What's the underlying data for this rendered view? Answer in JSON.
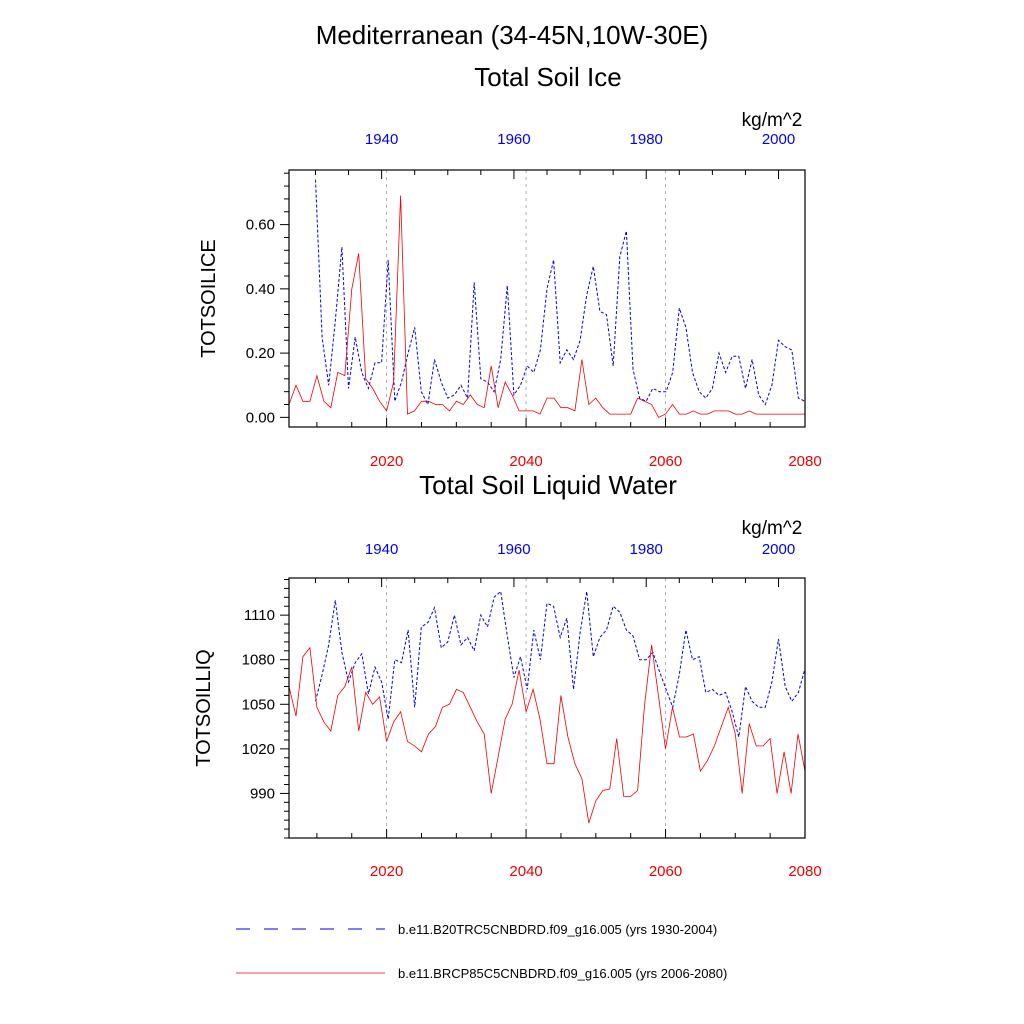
{
  "figure": {
    "title": "Mediterranean (34-45N,10W-30E)"
  },
  "colors": {
    "historical": "#0000ee",
    "future": "#ee0000",
    "grid": "#999999",
    "axis": "#000000"
  },
  "chart_data": [
    {
      "type": "line",
      "title": "Total Soil Ice",
      "ylabel": "TOTSOILICE",
      "units": "kg/m^2",
      "top_axis": {
        "range": [
          1926,
          2004
        ],
        "ticks": [
          1940,
          1960,
          1980,
          2000
        ],
        "labels": [
          "1940",
          "1960",
          "1980",
          "2000"
        ]
      },
      "bottom_axis": {
        "range": [
          2006,
          2080
        ],
        "ticks": [
          2020,
          2040,
          2060,
          2080
        ],
        "labels": [
          "2020",
          "2040",
          "2060",
          "2080"
        ]
      },
      "ylim": [
        -0.03,
        0.77
      ],
      "yticks": [
        0.0,
        0.2,
        0.4,
        0.6
      ],
      "ytick_labels": [
        "0.00",
        "0.20",
        "0.40",
        "0.60"
      ],
      "grid": "vertical dashed at bottom-axis ticks",
      "series": [
        {
          "name": "b.e11.B20TRC5CNBDRD.f09_g16.005 (yrs 1930-2004)",
          "axis": "top",
          "style": "dashed",
          "x": [
            1930,
            1931,
            1932,
            1933,
            1934,
            1935,
            1936,
            1937,
            1938,
            1939,
            1940,
            1941,
            1942,
            1943,
            1944,
            1945,
            1946,
            1947,
            1948,
            1949,
            1950,
            1951,
            1952,
            1953,
            1954,
            1955,
            1956,
            1957,
            1958,
            1959,
            1960,
            1961,
            1962,
            1963,
            1964,
            1965,
            1966,
            1967,
            1968,
            1969,
            1970,
            1971,
            1972,
            1973,
            1974,
            1975,
            1976,
            1977,
            1978,
            1979,
            1980,
            1981,
            1982,
            1983,
            1984,
            1985,
            1986,
            1987,
            1988,
            1989,
            1990,
            1991,
            1992,
            1993,
            1994,
            1995,
            1996,
            1997,
            1998,
            1999,
            2000,
            2001,
            2002,
            2003,
            2004
          ],
          "values": [
            0.74,
            0.25,
            0.1,
            0.3,
            0.53,
            0.09,
            0.25,
            0.14,
            0.09,
            0.17,
            0.17,
            0.49,
            0.05,
            0.11,
            0.2,
            0.28,
            0.08,
            0.04,
            0.18,
            0.11,
            0.06,
            0.07,
            0.1,
            0.06,
            0.42,
            0.12,
            0.11,
            0.08,
            0.18,
            0.41,
            0.07,
            0.1,
            0.16,
            0.14,
            0.21,
            0.4,
            0.49,
            0.17,
            0.21,
            0.18,
            0.24,
            0.38,
            0.47,
            0.33,
            0.32,
            0.16,
            0.5,
            0.58,
            0.15,
            0.06,
            0.05,
            0.09,
            0.08,
            0.08,
            0.14,
            0.34,
            0.28,
            0.14,
            0.08,
            0.06,
            0.09,
            0.2,
            0.14,
            0.19,
            0.19,
            0.09,
            0.18,
            0.07,
            0.04,
            0.1,
            0.24,
            0.22,
            0.21,
            0.06,
            0.05
          ]
        },
        {
          "name": "b.e11.BRCP85C5CNBDRD.f09_g16.005 (yrs 2006-2080)",
          "axis": "bottom",
          "style": "solid",
          "x": [
            2006,
            2007,
            2008,
            2009,
            2010,
            2011,
            2012,
            2013,
            2014,
            2015,
            2016,
            2017,
            2018,
            2019,
            2020,
            2021,
            2022,
            2023,
            2024,
            2025,
            2026,
            2027,
            2028,
            2029,
            2030,
            2031,
            2032,
            2033,
            2034,
            2035,
            2036,
            2037,
            2038,
            2039,
            2040,
            2041,
            2042,
            2043,
            2044,
            2045,
            2046,
            2047,
            2048,
            2049,
            2050,
            2051,
            2052,
            2053,
            2054,
            2055,
            2056,
            2057,
            2058,
            2059,
            2060,
            2061,
            2062,
            2063,
            2064,
            2065,
            2066,
            2067,
            2068,
            2069,
            2070,
            2071,
            2072,
            2073,
            2074,
            2075,
            2076,
            2077,
            2078,
            2079,
            2080
          ],
          "values": [
            0.04,
            0.1,
            0.05,
            0.05,
            0.13,
            0.05,
            0.03,
            0.14,
            0.13,
            0.4,
            0.51,
            0.12,
            0.09,
            0.05,
            0.02,
            0.11,
            0.69,
            0.01,
            0.02,
            0.05,
            0.05,
            0.04,
            0.04,
            0.02,
            0.05,
            0.04,
            0.07,
            0.04,
            0.03,
            0.16,
            0.03,
            0.11,
            0.07,
            0.02,
            0.02,
            0.02,
            0.01,
            0.06,
            0.06,
            0.03,
            0.03,
            0.02,
            0.18,
            0.04,
            0.06,
            0.03,
            0.01,
            0.01,
            0.01,
            0.01,
            0.06,
            0.05,
            0.04,
            0.0,
            0.01,
            0.04,
            0.01,
            0.01,
            0.02,
            0.01,
            0.01,
            0.02,
            0.02,
            0.02,
            0.01,
            0.01,
            0.02,
            0.01,
            0.01,
            0.01,
            0.01,
            0.01,
            0.01,
            0.01,
            0.01
          ]
        }
      ]
    },
    {
      "type": "line",
      "title": "Total Soil Liquid Water",
      "ylabel": "TOTSOILLIQ",
      "units": "kg/m^2",
      "top_axis": {
        "range": [
          1926,
          2004
        ],
        "ticks": [
          1940,
          1960,
          1980,
          2000
        ],
        "labels": [
          "1940",
          "1960",
          "1980",
          "2000"
        ]
      },
      "bottom_axis": {
        "range": [
          2006,
          2080
        ],
        "ticks": [
          2020,
          2040,
          2060,
          2080
        ],
        "labels": [
          "2020",
          "2040",
          "2060",
          "2080"
        ]
      },
      "ylim": [
        960,
        1135
      ],
      "yticks": [
        990,
        1020,
        1050,
        1080,
        1110
      ],
      "ytick_labels": [
        "990",
        "1020",
        "1050",
        "1080",
        "1110"
      ],
      "grid": "vertical dashed at bottom-axis ticks",
      "series": [
        {
          "name": "b.e11.B20TRC5CNBDRD.f09_g16.005 (yrs 1930-2004)",
          "axis": "top",
          "style": "dashed",
          "x": [
            1930,
            1931,
            1932,
            1933,
            1934,
            1935,
            1936,
            1937,
            1938,
            1939,
            1940,
            1941,
            1942,
            1943,
            1944,
            1945,
            1946,
            1947,
            1948,
            1949,
            1950,
            1951,
            1952,
            1953,
            1954,
            1955,
            1956,
            1957,
            1958,
            1959,
            1960,
            1961,
            1962,
            1963,
            1964,
            1965,
            1966,
            1967,
            1968,
            1969,
            1970,
            1971,
            1972,
            1973,
            1974,
            1975,
            1976,
            1977,
            1978,
            1979,
            1980,
            1981,
            1982,
            1983,
            1984,
            1985,
            1986,
            1987,
            1988,
            1989,
            1990,
            1991,
            1992,
            1993,
            1994,
            1995,
            1996,
            1997,
            1998,
            1999,
            2000,
            2001,
            2002,
            2003,
            2004
          ],
          "values": [
            1052,
            1070,
            1090,
            1120,
            1085,
            1065,
            1078,
            1084,
            1057,
            1075,
            1065,
            1040,
            1080,
            1078,
            1100,
            1048,
            1102,
            1105,
            1115,
            1088,
            1092,
            1110,
            1090,
            1095,
            1086,
            1110,
            1102,
            1122,
            1126,
            1096,
            1068,
            1082,
            1060,
            1100,
            1080,
            1118,
            1116,
            1095,
            1108,
            1060,
            1098,
            1126,
            1082,
            1095,
            1100,
            1116,
            1112,
            1100,
            1096,
            1080,
            1080,
            1085,
            1072,
            1060,
            1048,
            1070,
            1100,
            1080,
            1082,
            1058,
            1060,
            1056,
            1058,
            1045,
            1028,
            1062,
            1052,
            1048,
            1048,
            1065,
            1094,
            1062,
            1052,
            1058,
            1074
          ]
        },
        {
          "name": "b.e11.BRCP85C5CNBDRD.f09_g16.005 (yrs 2006-2080)",
          "axis": "bottom",
          "style": "solid",
          "x": [
            2006,
            2007,
            2008,
            2009,
            2010,
            2011,
            2012,
            2013,
            2014,
            2015,
            2016,
            2017,
            2018,
            2019,
            2020,
            2021,
            2022,
            2023,
            2024,
            2025,
            2026,
            2027,
            2028,
            2029,
            2030,
            2031,
            2032,
            2033,
            2034,
            2035,
            2036,
            2037,
            2038,
            2039,
            2040,
            2041,
            2042,
            2043,
            2044,
            2045,
            2046,
            2047,
            2048,
            2049,
            2050,
            2051,
            2052,
            2053,
            2054,
            2055,
            2056,
            2057,
            2058,
            2059,
            2060,
            2061,
            2062,
            2063,
            2064,
            2065,
            2066,
            2067,
            2068,
            2069,
            2070,
            2071,
            2072,
            2073,
            2074,
            2075,
            2076,
            2077,
            2078,
            2079,
            2080
          ],
          "values": [
            1062,
            1042,
            1082,
            1088,
            1048,
            1038,
            1032,
            1056,
            1062,
            1075,
            1032,
            1058,
            1050,
            1055,
            1025,
            1038,
            1045,
            1025,
            1022,
            1018,
            1030,
            1035,
            1048,
            1050,
            1060,
            1058,
            1048,
            1038,
            1030,
            990,
            1015,
            1040,
            1050,
            1073,
            1045,
            1060,
            1040,
            1010,
            1010,
            1056,
            1028,
            1010,
            1000,
            970,
            985,
            992,
            993,
            1027,
            988,
            988,
            992,
            1050,
            1090,
            1055,
            1020,
            1048,
            1028,
            1028,
            1030,
            1005,
            1012,
            1022,
            1035,
            1048,
            1030,
            990,
            1037,
            1022,
            1022,
            1027,
            990,
            1018,
            990,
            1030,
            1005
          ]
        }
      ]
    }
  ],
  "legend": {
    "entries": [
      {
        "label": "b.e11.B20TRC5CNBDRD.f09_g16.005 (yrs 1930-2004)",
        "style": "dashed",
        "color": "#0000ee"
      },
      {
        "label": "b.e11.BRCP85C5CNBDRD.f09_g16.005 (yrs 2006-2080)",
        "style": "solid",
        "color": "#ee0000"
      }
    ]
  }
}
